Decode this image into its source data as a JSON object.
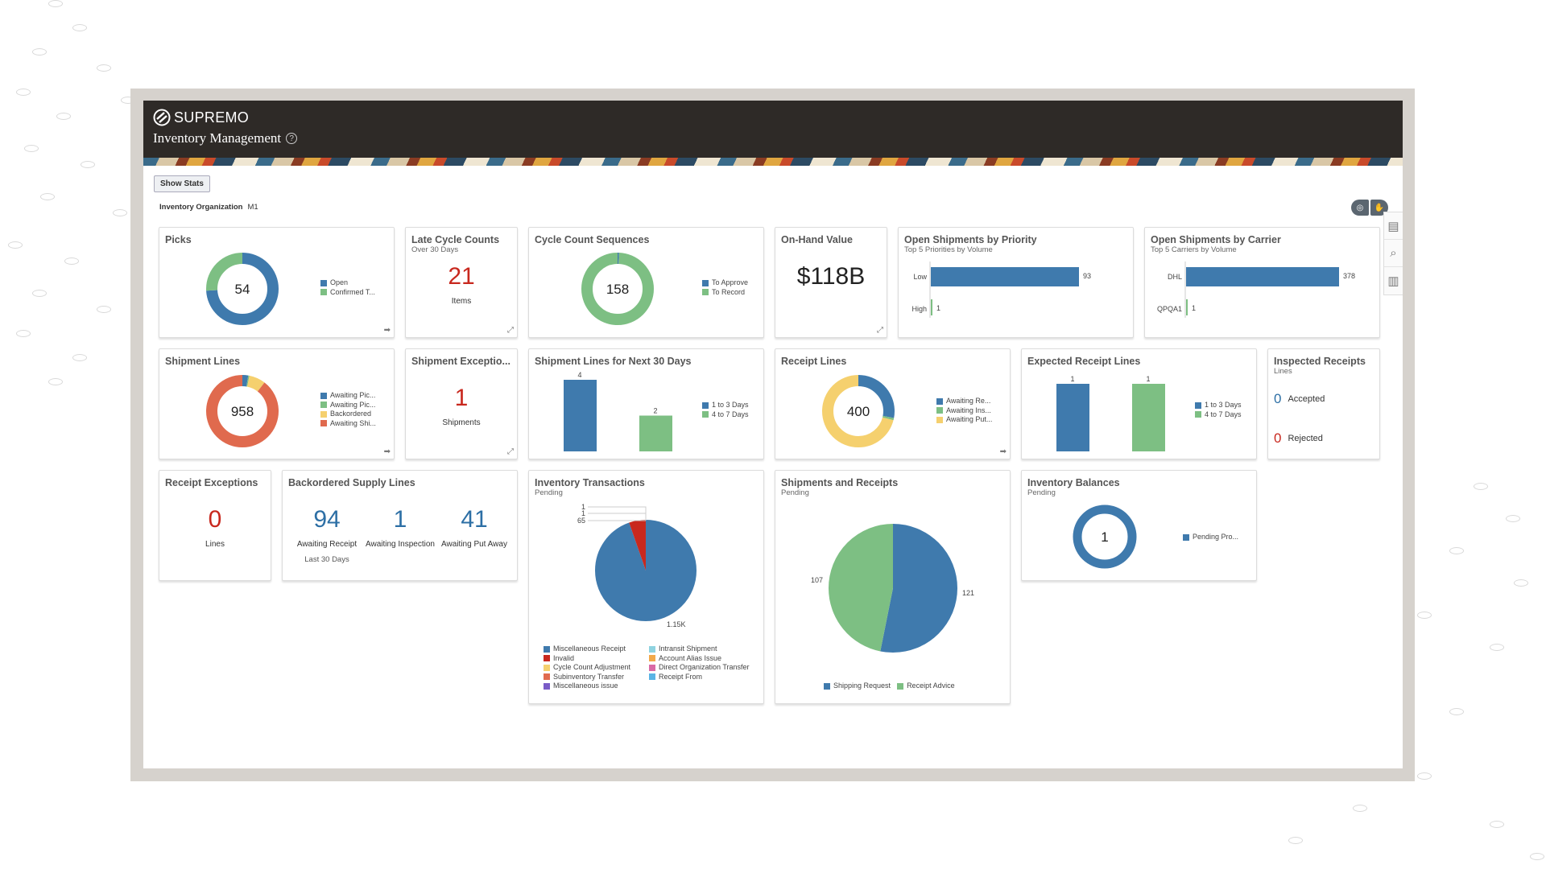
{
  "header": {
    "brand": "SUPREMO",
    "title": "Inventory Management",
    "help_icon": "question-circle-icon"
  },
  "toolbar": {
    "show_stats": "Show Stats",
    "org_label": "Inventory Organization",
    "org_value": "M1"
  },
  "colors": {
    "blue": "#3f7aad",
    "green": "#7dbf83",
    "yellow": "#f5d06e",
    "orange": "#e06a4e",
    "red": "#c8281e",
    "number_blue": "#2d6fa5"
  },
  "cards": {
    "picks": {
      "title": "Picks",
      "center": "54",
      "legend": [
        "Open",
        "Confirmed T..."
      ]
    },
    "late_cycle": {
      "title": "Late Cycle Counts",
      "subtitle": "Over 30 Days",
      "value": "21",
      "unit": "Items"
    },
    "cycle_seq": {
      "title": "Cycle Count Sequences",
      "center": "158",
      "legend": [
        "To Approve",
        "To Record"
      ]
    },
    "onhand": {
      "title": "On-Hand Value",
      "value": "$118B"
    },
    "priority": {
      "title": "Open Shipments by Priority",
      "subtitle": "Top 5 Priorities by Volume"
    },
    "carrier": {
      "title": "Open Shipments by Carrier",
      "subtitle": "Top 5 Carriers by Volume"
    },
    "ship_lines": {
      "title": "Shipment Lines",
      "center": "958",
      "legend": [
        "Awaiting Pic...",
        "Awaiting Pic...",
        "Backordered",
        "Awaiting Shi..."
      ]
    },
    "ship_exc": {
      "title": "Shipment Exceptio...",
      "value": "1",
      "unit": "Shipments"
    },
    "next30": {
      "title": "Shipment Lines for Next 30 Days",
      "legend": [
        "1 to 3 Days",
        "4 to 7 Days"
      ]
    },
    "receipt_lines": {
      "title": "Receipt Lines",
      "center": "400",
      "legend": [
        "Awaiting Re...",
        "Awaiting Ins...",
        "Awaiting Put..."
      ]
    },
    "expected": {
      "title": "Expected Receipt Lines",
      "legend": [
        "1 to 3 Days",
        "4 to 7 Days"
      ]
    },
    "inspected": {
      "title": "Inspected Receipts",
      "subtitle": "Lines",
      "accepted_value": "0",
      "accepted": "Accepted",
      "rejected_value": "0",
      "rejected": "Rejected"
    },
    "receipt_exc": {
      "title": "Receipt Exceptions",
      "value": "0",
      "unit": "Lines"
    },
    "backordered": {
      "title": "Backordered Supply Lines",
      "items": [
        {
          "value": "94",
          "label": "Awaiting Receipt"
        },
        {
          "value": "1",
          "label": "Awaiting Inspection"
        },
        {
          "value": "41",
          "label": "Awaiting Put Away"
        }
      ],
      "footnote": "Last 30 Days"
    },
    "inv_trans": {
      "title": "Inventory Transactions",
      "subtitle": "Pending",
      "legend": [
        "Miscellaneous Receipt",
        "Invalid",
        "Cycle Count Adjustment",
        "Subinventory Transfer",
        "Miscellaneous issue",
        "Intransit Shipment",
        "Account Alias Issue",
        "Direct Organization Transfer",
        "Receipt From"
      ],
      "legend_colors": [
        "#3f7aad",
        "#c8281e",
        "#f5d06e",
        "#e06a4e",
        "#7a5cc7",
        "#8fd3e0",
        "#f2a94a",
        "#d96aa5",
        "#5ab4e5"
      ]
    },
    "ship_rec": {
      "title": "Shipments and Receipts",
      "subtitle": "Pending",
      "legend": [
        "Shipping Request",
        "Receipt Advice"
      ]
    },
    "balances": {
      "title": "Inventory Balances",
      "subtitle": "Pending",
      "center": "1",
      "legend": [
        "Pending Pro..."
      ]
    }
  },
  "chart_data": [
    {
      "id": "picks",
      "type": "pie",
      "donut": true,
      "categories": [
        "Open",
        "Confirmed T..."
      ],
      "values": [
        40,
        14
      ]
    },
    {
      "id": "cycle_seq",
      "type": "pie",
      "donut": true,
      "categories": [
        "To Approve",
        "To Record"
      ],
      "values": [
        1,
        157
      ]
    },
    {
      "id": "priority",
      "type": "bar",
      "orientation": "horizontal",
      "categories": [
        "Low",
        "High"
      ],
      "values": [
        93,
        1
      ],
      "labels": [
        "93",
        "1"
      ]
    },
    {
      "id": "carrier",
      "type": "bar",
      "orientation": "horizontal",
      "categories": [
        "DHL",
        "QPQA1"
      ],
      "values": [
        378,
        1
      ],
      "labels": [
        "378",
        "1"
      ]
    },
    {
      "id": "ship_lines",
      "type": "pie",
      "donut": true,
      "categories": [
        "Awaiting Pic...",
        "Awaiting Pic...",
        "Backordered",
        "Awaiting Shi..."
      ],
      "values": [
        25,
        5,
        70,
        858
      ]
    },
    {
      "id": "next30",
      "type": "bar",
      "categories": [
        "1 to 3 Days",
        "4 to 7 Days"
      ],
      "values": [
        4,
        2
      ],
      "labels": [
        "4",
        "2"
      ]
    },
    {
      "id": "receipt_lines",
      "type": "pie",
      "donut": true,
      "categories": [
        "Awaiting Re...",
        "Awaiting Ins...",
        "Awaiting Put..."
      ],
      "values": [
        112,
        4,
        284
      ]
    },
    {
      "id": "expected",
      "type": "bar",
      "categories": [
        "1 to 3 Days",
        "4 to 7 Days"
      ],
      "values": [
        1,
        1
      ],
      "labels": [
        "1",
        "1"
      ]
    },
    {
      "id": "inv_trans",
      "type": "pie",
      "categories": [
        "Miscellaneous Receipt",
        "Invalid",
        "Cycle Count Adjustment",
        "Intransit Shipment"
      ],
      "values": [
        1150,
        65,
        1,
        1
      ],
      "labels": [
        "1.15K",
        "65",
        "1",
        "1"
      ]
    },
    {
      "id": "ship_rec",
      "type": "pie",
      "categories": [
        "Shipping Request",
        "Receipt Advice"
      ],
      "values": [
        121,
        107
      ],
      "labels": [
        "121",
        "107"
      ]
    },
    {
      "id": "balances",
      "type": "pie",
      "donut": true,
      "categories": [
        "Pending Pro..."
      ],
      "values": [
        1
      ]
    }
  ]
}
